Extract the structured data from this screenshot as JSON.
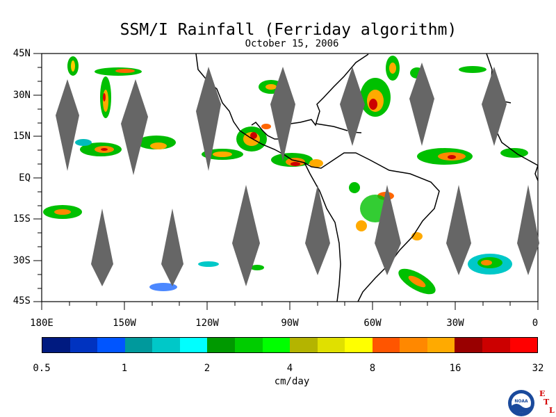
{
  "title": "SSM/I Rainfall (Ferriday algorithm)",
  "date": "October 15, 2006",
  "lat_labels": [
    "45N",
    "30N",
    "15N",
    "EQ",
    "15S",
    "30S",
    "45S"
  ],
  "lon_labels": [
    "180E",
    "150W",
    "120W",
    "90W",
    "60W",
    "30W",
    "0"
  ],
  "colorbar": {
    "colors": [
      "#001a80",
      "#0033c0",
      "#0055ff",
      "#00999c",
      "#00c8c8",
      "#00ffff",
      "#009900",
      "#00cc00",
      "#00ff00",
      "#b4b400",
      "#e0e000",
      "#ffff00",
      "#ff5500",
      "#ff8800",
      "#ffaa00",
      "#990000",
      "#cc0000",
      "#ff0000"
    ],
    "tick_labels": [
      "0.5",
      "1",
      "2",
      "4",
      "8",
      "16",
      "32"
    ],
    "units": "cm/day"
  },
  "logo": {
    "text": "NOAA",
    "lab_letters": [
      "E",
      "T",
      "L"
    ]
  },
  "colors": {
    "swath_gap": "#666666",
    "coast": "#000000"
  }
}
